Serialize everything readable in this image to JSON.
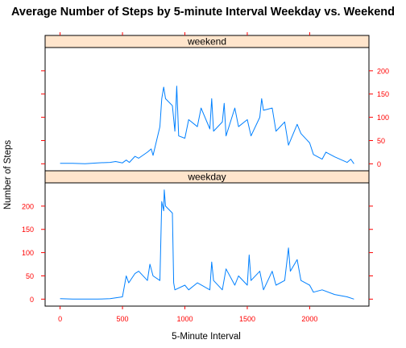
{
  "chart_data": [
    {
      "type": "line",
      "title": "Average Number of Steps by 5-minute Interval Weekday vs. Weekend",
      "xlabel": "5-Minute Interval",
      "ylabel": "Number of Steps",
      "xlim": [
        -120,
        2475
      ],
      "ylim": [
        -15,
        250
      ],
      "xticks": [
        0,
        500,
        1000,
        1500,
        2000
      ],
      "xtick_labels": [
        "0",
        "500",
        "1000",
        "1500",
        "2000"
      ],
      "yticks": [
        0,
        50,
        100,
        150,
        200
      ],
      "ytick_labels": [
        "0",
        "50",
        "100",
        "150",
        "200"
      ],
      "grid": false,
      "line_color": "#0080ff",
      "axis_color": "#ff0000",
      "strip_color": "#ffe5cc",
      "panels": [
        {
          "name": "weekend",
          "yaxis_side": "right",
          "x": [
            0,
            100,
            200,
            300,
            400,
            445,
            500,
            530,
            555,
            600,
            630,
            700,
            730,
            745,
            800,
            815,
            830,
            845,
            900,
            920,
            935,
            950,
            1000,
            1030,
            1100,
            1130,
            1200,
            1215,
            1230,
            1300,
            1315,
            1330,
            1400,
            1430,
            1500,
            1530,
            1600,
            1615,
            1630,
            1700,
            1730,
            1800,
            1830,
            1900,
            1930,
            2000,
            2030,
            2100,
            2130,
            2200,
            2300,
            2330,
            2355
          ],
          "y": [
            1,
            1,
            0,
            2,
            3,
            5,
            2,
            8,
            3,
            16,
            12,
            25,
            32,
            18,
            80,
            140,
            165,
            140,
            125,
            70,
            167,
            60,
            55,
            95,
            80,
            120,
            75,
            140,
            70,
            90,
            130,
            60,
            120,
            80,
            95,
            60,
            100,
            140,
            115,
            120,
            70,
            90,
            40,
            85,
            65,
            45,
            20,
            10,
            25,
            15,
            3,
            10,
            0
          ]
        },
        {
          "name": "weekday",
          "yaxis_side": "left",
          "x": [
            0,
            100,
            200,
            300,
            400,
            500,
            530,
            550,
            600,
            630,
            700,
            720,
            745,
            800,
            815,
            830,
            835,
            845,
            900,
            910,
            920,
            1000,
            1030,
            1100,
            1200,
            1215,
            1230,
            1300,
            1330,
            1400,
            1430,
            1500,
            1515,
            1530,
            1600,
            1630,
            1700,
            1730,
            1800,
            1830,
            1845,
            1900,
            1930,
            2000,
            2030,
            2100,
            2200,
            2300,
            2355
          ],
          "y": [
            1,
            0,
            0,
            0,
            1,
            5,
            50,
            35,
            55,
            60,
            40,
            75,
            50,
            40,
            210,
            190,
            235,
            200,
            185,
            35,
            20,
            30,
            20,
            35,
            20,
            80,
            40,
            20,
            65,
            30,
            50,
            30,
            95,
            40,
            60,
            20,
            60,
            30,
            40,
            110,
            60,
            85,
            40,
            30,
            15,
            20,
            10,
            5,
            0
          ]
        }
      ]
    }
  ]
}
